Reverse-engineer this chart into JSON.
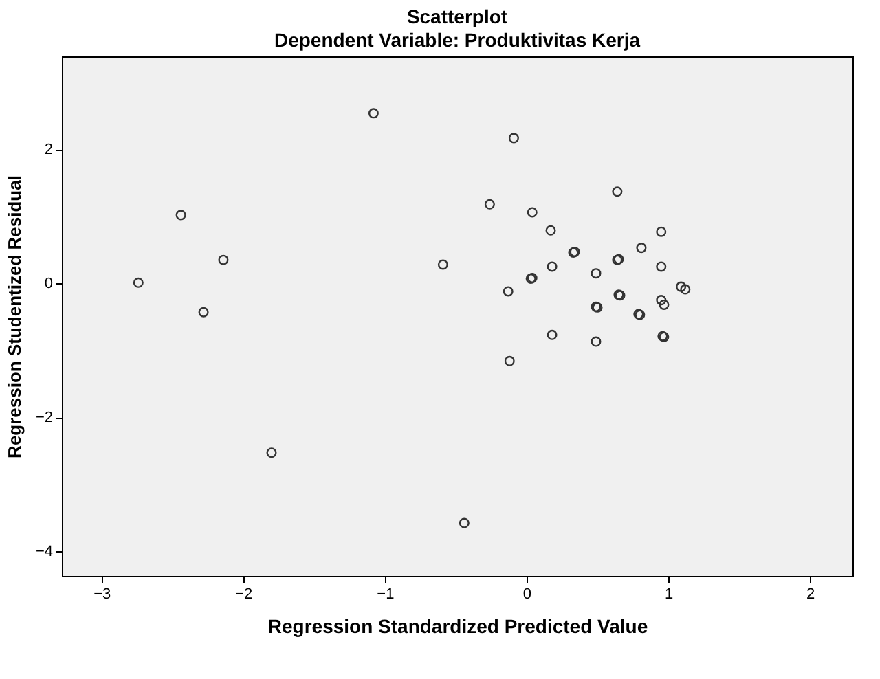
{
  "chart_data": {
    "type": "scatter",
    "title": "Scatterplot",
    "subtitle": "Dependent Variable: Produktivitas Kerja",
    "xlabel": "Regression Standardized Predicted Value",
    "ylabel": "Regression Studentized Residual",
    "x": [
      -1.08,
      -2.44,
      -2.14,
      -2.74,
      -2.28,
      -0.59,
      -1.8,
      -0.09,
      0.64,
      -0.26,
      0.04,
      0.17,
      0.95,
      0.81,
      0.33,
      0.34,
      0.64,
      0.65,
      0.18,
      0.95,
      0.49,
      0.03,
      0.04,
      -0.13,
      1.09,
      1.12,
      0.65,
      0.66,
      0.95,
      0.97,
      0.49,
      0.5,
      0.79,
      0.8,
      0.18,
      0.96,
      0.97,
      0.49,
      -0.12,
      -0.44
    ],
    "series": [
      {
        "color": "#333333",
        "values": [
          2.54,
          1.02,
          0.35,
          0.01,
          -0.43,
          0.28,
          -2.53,
          2.17,
          1.37,
          1.18,
          1.06,
          0.79,
          0.77,
          0.53,
          0.46,
          0.47,
          0.35,
          0.36,
          0.25,
          0.25,
          0.15,
          0.07,
          0.08,
          -0.12,
          -0.05,
          -0.09,
          -0.17,
          -0.18,
          -0.25,
          -0.32,
          -0.35,
          -0.36,
          -0.46,
          -0.47,
          -0.77,
          -0.79,
          -0.8,
          -0.87,
          -1.16,
          -3.58
        ]
      }
    ],
    "xlim": [
      -3.28,
      2.3
    ],
    "ylim": [
      -4.37,
      3.39
    ],
    "xticks": [
      -3,
      -2,
      -1,
      0,
      1,
      2
    ],
    "yticks": [
      -4,
      -2,
      0,
      2
    ],
    "grid": false,
    "legend": false,
    "marker": "circle"
  }
}
